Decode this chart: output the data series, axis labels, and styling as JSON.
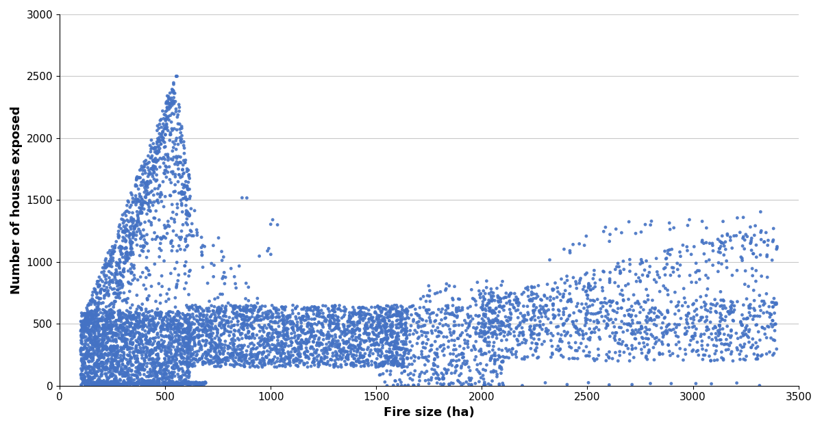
{
  "xlabel": "Fire size (ha)",
  "ylabel": "Number of houses exposed",
  "xlim": [
    0,
    3500
  ],
  "ylim": [
    0,
    3000
  ],
  "xticks": [
    0,
    500,
    1000,
    1500,
    2000,
    2500,
    3000,
    3500
  ],
  "yticks": [
    0,
    500,
    1000,
    1500,
    2000,
    2500,
    3000
  ],
  "dot_color": "#4472C4",
  "dot_size": 12,
  "dot_alpha": 0.9,
  "background_color": "#ffffff",
  "grid_color": "#c8c8c8",
  "xlabel_fontsize": 13,
  "ylabel_fontsize": 13,
  "tick_fontsize": 11
}
